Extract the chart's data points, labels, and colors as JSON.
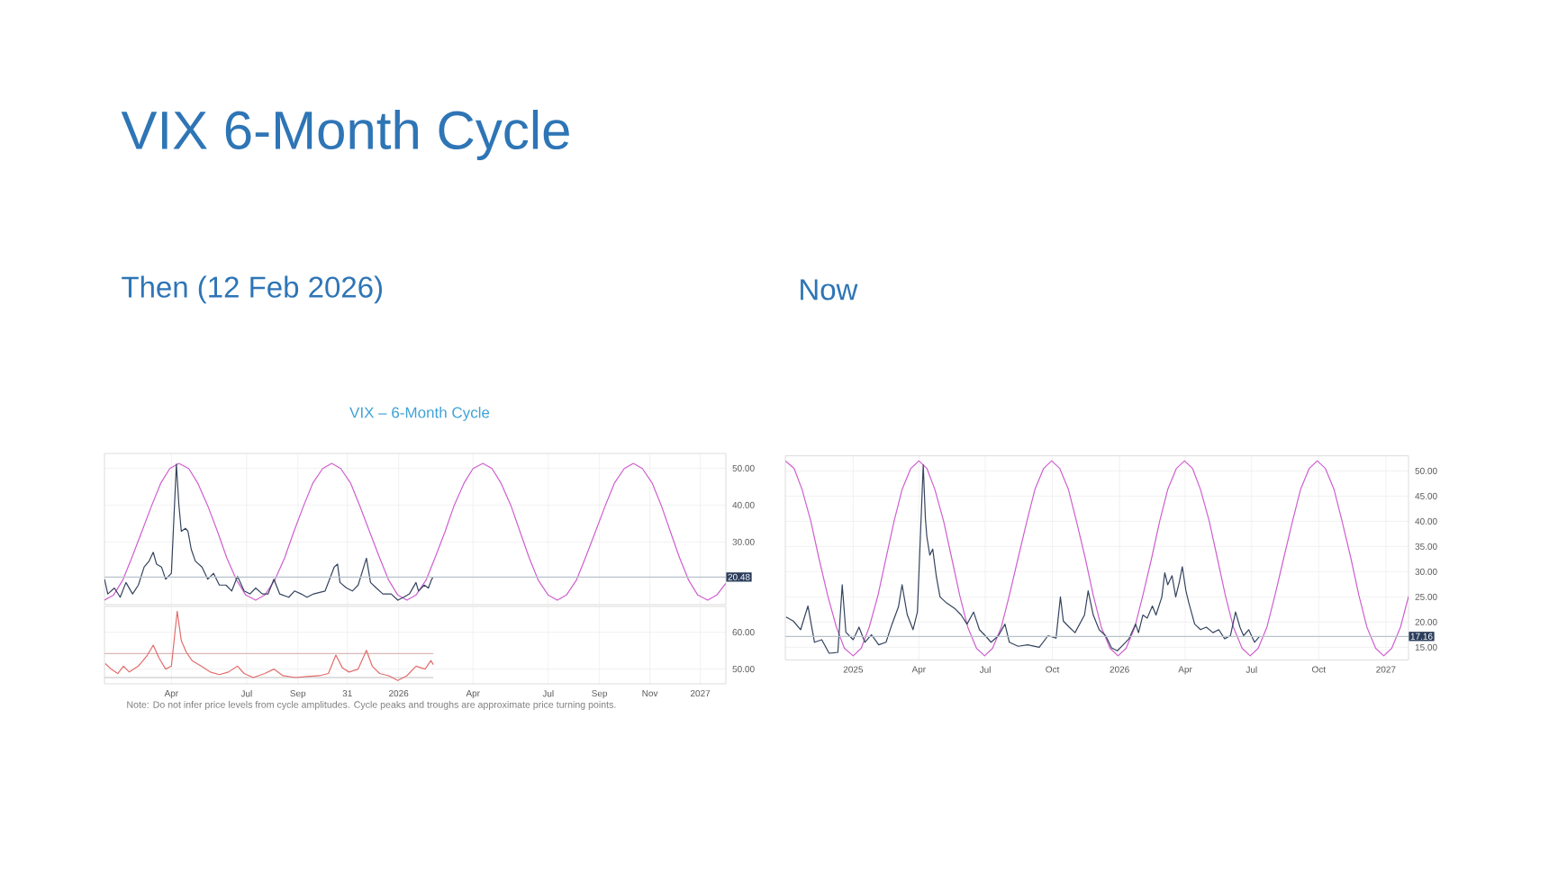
{
  "chart_data": [
    {
      "type": "line",
      "title": "VIX 6-Month Cycle",
      "subtitle": "Then (12 Feb 2026)",
      "annotations": [
        "VIX – 6-Month Cycle"
      ],
      "xlim": [
        "2025-01-10",
        "2027-02-01"
      ],
      "xticks": [
        {
          "value": "2025-04-01",
          "label": null
        },
        {
          "value": "2025-07-01",
          "label": null
        },
        {
          "value": "2025-09-01",
          "label": null
        },
        {
          "value": "2025-10-31",
          "label": null
        },
        {
          "value": "2026-01-01",
          "label": null
        },
        {
          "value": "2026-04-01",
          "label": null
        },
        {
          "value": "2026-07-01",
          "label": null
        },
        {
          "value": "2026-09-01",
          "label": null
        },
        {
          "value": "2026-11-01",
          "label": null
        },
        {
          "value": "2027-01-01",
          "label": null
        }
      ],
      "ylim": [
        13,
        54
      ],
      "yticks": [
        {
          "value": 30,
          "label": "30.00"
        },
        {
          "value": 40,
          "label": "40.00"
        },
        {
          "value": 50,
          "label": "50.00"
        }
      ],
      "grid": true,
      "tick_labels": "y",
      "ref_lines": [
        {
          "axis": "y",
          "value": 20.48,
          "label": "20.48",
          "color": "#b8c2cc"
        }
      ],
      "series": [
        {
          "color": "#cf5fcf",
          "x": [
            "2025-01-10",
            "2025-01-21",
            "2025-02-01",
            "2025-02-12",
            "2025-02-24",
            "2025-03-08",
            "2025-03-19",
            "2025-03-30",
            "2025-04-10",
            "2025-04-22",
            "2025-05-03",
            "2025-05-15",
            "2025-05-27",
            "2025-06-07",
            "2025-06-19",
            "2025-06-30",
            "2025-07-12",
            "2025-07-23",
            "2025-08-04",
            "2025-08-16",
            "2025-08-27",
            "2025-09-08",
            "2025-09-19",
            "2025-10-01",
            "2025-10-12",
            "2025-10-23",
            "2025-11-04",
            "2025-11-15",
            "2025-11-27",
            "2025-12-09",
            "2025-12-20",
            "2025-12-31",
            "2026-01-11",
            "2026-01-22",
            "2026-02-03",
            "2026-02-14",
            "2026-02-26",
            "2026-03-09",
            "2026-03-21",
            "2026-04-01",
            "2026-04-13",
            "2026-04-24",
            "2026-05-05",
            "2026-05-17",
            "2026-05-28",
            "2026-06-08",
            "2026-06-19",
            "2026-07-01",
            "2026-07-12",
            "2026-07-23",
            "2026-08-04",
            "2026-08-15",
            "2026-08-27",
            "2026-09-08",
            "2026-09-19",
            "2026-10-01",
            "2026-10-12",
            "2026-10-23",
            "2026-11-04",
            "2026-11-15",
            "2026-11-26",
            "2026-12-07",
            "2026-12-18",
            "2026-12-29",
            "2027-01-10",
            "2027-01-21",
            "2027-02-01"
          ],
          "values": [
            14.2,
            15.6,
            19.6,
            25.7,
            32.7,
            39.8,
            45.9,
            49.9,
            51.3,
            49.9,
            45.9,
            39.8,
            32.7,
            25.7,
            19.6,
            15.6,
            14.2,
            15.6,
            19.6,
            25.7,
            32.7,
            39.8,
            45.9,
            49.9,
            51.3,
            49.9,
            45.9,
            39.8,
            32.7,
            25.7,
            19.6,
            15.6,
            14.2,
            15.6,
            19.6,
            25.7,
            32.7,
            39.8,
            45.9,
            49.9,
            51.3,
            49.9,
            45.9,
            39.8,
            32.7,
            25.7,
            19.6,
            15.6,
            14.2,
            15.6,
            19.6,
            25.7,
            32.7,
            39.8,
            45.9,
            49.9,
            51.3,
            49.9,
            45.9,
            39.8,
            32.7,
            25.7,
            19.6,
            15.6,
            14.2,
            15.6,
            18.8
          ]
        },
        {
          "color": "#34445e",
          "x": [
            "2025-01-10",
            "2025-01-14",
            "2025-01-22",
            "2025-01-29",
            "2025-02-05",
            "2025-02-13",
            "2025-02-20",
            "2025-02-27",
            "2025-03-05",
            "2025-03-10",
            "2025-03-14",
            "2025-03-20",
            "2025-03-25",
            "2025-04-01",
            "2025-04-07",
            "2025-04-10",
            "2025-04-13",
            "2025-04-18",
            "2025-04-21",
            "2025-04-25",
            "2025-04-30",
            "2025-05-08",
            "2025-05-15",
            "2025-05-22",
            "2025-05-29",
            "2025-06-06",
            "2025-06-13",
            "2025-06-20",
            "2025-06-28",
            "2025-07-05",
            "2025-07-12",
            "2025-07-20",
            "2025-07-27",
            "2025-08-03",
            "2025-08-10",
            "2025-08-21",
            "2025-08-28",
            "2025-09-05",
            "2025-09-12",
            "2025-09-20",
            "2025-09-27",
            "2025-10-04",
            "2025-10-15",
            "2025-10-19",
            "2025-10-22",
            "2025-10-30",
            "2025-11-06",
            "2025-11-13",
            "2025-11-23",
            "2025-11-28",
            "2025-12-05",
            "2025-12-13",
            "2025-12-23",
            "2025-12-31",
            "2026-01-07",
            "2026-01-14",
            "2026-01-22",
            "2026-01-25",
            "2026-02-01",
            "2026-02-06",
            "2026-02-10",
            "2026-02-12"
          ],
          "values": [
            19.9,
            15.9,
            17.5,
            15.0,
            19.0,
            15.9,
            18.3,
            23.2,
            24.8,
            27.2,
            24.0,
            23.2,
            19.9,
            21.5,
            51.1,
            40.2,
            32.9,
            33.7,
            32.9,
            28.0,
            24.8,
            23.2,
            19.9,
            21.5,
            18.3,
            18.3,
            16.7,
            20.7,
            16.7,
            15.9,
            17.5,
            15.9,
            15.9,
            19.9,
            15.9,
            15.0,
            16.7,
            15.9,
            15.0,
            15.9,
            16.3,
            16.7,
            23.2,
            24.0,
            19.0,
            17.5,
            16.7,
            18.3,
            25.6,
            19.0,
            17.5,
            15.9,
            15.9,
            14.2,
            15.0,
            15.9,
            19.0,
            16.7,
            18.3,
            17.5,
            19.9,
            20.5
          ]
        }
      ]
    },
    {
      "type": "line",
      "annotations": [
        "Note: Do not infer price levels from cycle amplitudes. Cycle peaks and troughs are approximate price turning points."
      ],
      "xlim": [
        "2025-01-10",
        "2027-02-01"
      ],
      "xticks": [
        {
          "value": "2025-04-01",
          "label": "Apr"
        },
        {
          "value": "2025-07-01",
          "label": "Jul"
        },
        {
          "value": "2025-09-01",
          "label": "Sep"
        },
        {
          "value": "2025-10-31",
          "label": "31"
        },
        {
          "value": "2026-01-01",
          "label": "2026"
        },
        {
          "value": "2026-04-01",
          "label": "Apr"
        },
        {
          "value": "2026-07-01",
          "label": "Jul"
        },
        {
          "value": "2026-09-01",
          "label": "Sep"
        },
        {
          "value": "2026-11-01",
          "label": "Nov"
        },
        {
          "value": "2027-01-01",
          "label": "2027"
        }
      ],
      "ylim": [
        46,
        67
      ],
      "yticks": [
        {
          "value": 50,
          "label": "50.00"
        },
        {
          "value": 60,
          "label": "60.00"
        }
      ],
      "grid": true,
      "series": [
        {
          "color": "#dcb8b8",
          "x": [
            "2025-01-10",
            "2026-02-12"
          ],
          "values": [
            54.2,
            54.2
          ]
        },
        {
          "color": "#bfbfbf",
          "x": [
            "2025-01-10",
            "2026-02-12"
          ],
          "values": [
            47.7,
            47.7
          ]
        },
        {
          "color": "#e36c6c",
          "x": [
            "2025-01-11",
            "2025-01-18",
            "2025-01-26",
            "2025-02-02",
            "2025-02-09",
            "2025-02-20",
            "2025-03-03",
            "2025-03-10",
            "2025-03-17",
            "2025-03-25",
            "2025-04-01",
            "2025-04-08",
            "2025-04-13",
            "2025-04-19",
            "2025-04-26",
            "2025-05-07",
            "2025-05-18",
            "2025-05-29",
            "2025-06-09",
            "2025-06-20",
            "2025-06-28",
            "2025-07-09",
            "2025-07-23",
            "2025-08-03",
            "2025-08-14",
            "2025-08-29",
            "2025-09-12",
            "2025-09-27",
            "2025-10-08",
            "2025-10-17",
            "2025-10-25",
            "2025-11-02",
            "2025-11-13",
            "2025-11-23",
            "2025-11-30",
            "2025-12-09",
            "2025-12-20",
            "2025-12-31",
            "2026-01-11",
            "2026-01-22",
            "2026-02-02",
            "2026-02-09",
            "2026-02-12"
          ],
          "values": [
            51.5,
            50.0,
            48.8,
            50.8,
            49.2,
            50.8,
            53.8,
            56.5,
            53.0,
            50.0,
            50.8,
            65.7,
            57.7,
            54.6,
            52.3,
            50.8,
            49.2,
            48.5,
            49.2,
            50.8,
            48.8,
            47.7,
            48.8,
            50.0,
            48.2,
            47.7,
            48.0,
            48.2,
            48.8,
            53.8,
            50.3,
            49.2,
            50.0,
            55.1,
            50.8,
            48.8,
            48.2,
            46.9,
            48.2,
            50.8,
            50.0,
            52.3,
            51.2
          ]
        }
      ]
    },
    {
      "type": "line",
      "subtitle": "Now",
      "xlim": [
        "2024-09-30",
        "2027-02-01"
      ],
      "xticks": [
        {
          "value": "2025-01-01",
          "label": "2025"
        },
        {
          "value": "2025-04-01",
          "label": "Apr"
        },
        {
          "value": "2025-07-01",
          "label": "Jul"
        },
        {
          "value": "2025-10-01",
          "label": "Oct"
        },
        {
          "value": "2026-01-01",
          "label": "2026"
        },
        {
          "value": "2026-04-01",
          "label": "Apr"
        },
        {
          "value": "2026-07-01",
          "label": "Jul"
        },
        {
          "value": "2026-10-01",
          "label": "Oct"
        },
        {
          "value": "2027-01-01",
          "label": "2027"
        }
      ],
      "ylim": [
        12.5,
        53
      ],
      "yticks": [
        {
          "value": 15,
          "label": "15.00"
        },
        {
          "value": 20,
          "label": "20.00"
        },
        {
          "value": 25,
          "label": "25.00"
        },
        {
          "value": 30,
          "label": "30.00"
        },
        {
          "value": 35,
          "label": "35.00"
        },
        {
          "value": 40,
          "label": "40.00"
        },
        {
          "value": 45,
          "label": "45.00"
        },
        {
          "value": 50,
          "label": "50.00"
        }
      ],
      "grid": true,
      "ref_lines": [
        {
          "axis": "y",
          "value": 17.16,
          "label": "17.16",
          "color": "#b8c2cc"
        }
      ],
      "series": [
        {
          "color": "#cf5fcf",
          "x": [
            "2024-09-30",
            "2024-10-12",
            "2024-10-23",
            "2024-11-04",
            "2024-11-15",
            "2024-11-27",
            "2024-12-09",
            "2024-12-20",
            "2025-01-01",
            "2025-01-12",
            "2025-01-23",
            "2025-02-04",
            "2025-02-15",
            "2025-02-26",
            "2025-03-09",
            "2025-03-21",
            "2025-04-01",
            "2025-04-12",
            "2025-04-23",
            "2025-05-05",
            "2025-05-16",
            "2025-05-27",
            "2025-06-07",
            "2025-06-19",
            "2025-06-30",
            "2025-07-11",
            "2025-07-23",
            "2025-08-03",
            "2025-08-15",
            "2025-08-27",
            "2025-09-07",
            "2025-09-19",
            "2025-09-30",
            "2025-10-11",
            "2025-10-23",
            "2025-11-03",
            "2025-11-15",
            "2025-11-26",
            "2025-12-07",
            "2025-12-19",
            "2025-12-30",
            "2026-01-10",
            "2026-01-22",
            "2026-02-02",
            "2026-02-14",
            "2026-02-25",
            "2026-03-08",
            "2026-03-20",
            "2026-03-31",
            "2026-04-11",
            "2026-04-22",
            "2026-05-04",
            "2026-05-15",
            "2026-05-26",
            "2026-06-06",
            "2026-06-18",
            "2026-06-29",
            "2026-07-10",
            "2026-07-22",
            "2026-08-02",
            "2026-08-14",
            "2026-08-26",
            "2026-09-06",
            "2026-09-18",
            "2026-09-29",
            "2026-10-10",
            "2026-10-22",
            "2026-11-02",
            "2026-11-14",
            "2026-11-25",
            "2026-12-06",
            "2026-12-18",
            "2026-12-29",
            "2027-01-09",
            "2027-01-21",
            "2027-02-01"
          ],
          "values": [
            52.0,
            50.5,
            46.3,
            40.0,
            32.7,
            25.3,
            19.0,
            14.8,
            13.3,
            14.8,
            19.0,
            25.3,
            32.7,
            40.0,
            46.3,
            50.5,
            52.0,
            50.5,
            46.3,
            40.0,
            32.7,
            25.3,
            19.0,
            14.8,
            13.3,
            14.8,
            19.0,
            25.3,
            32.7,
            40.0,
            46.3,
            50.5,
            52.0,
            50.5,
            46.3,
            40.0,
            32.7,
            25.3,
            19.0,
            14.8,
            13.3,
            14.8,
            19.0,
            25.3,
            32.7,
            40.0,
            46.3,
            50.5,
            52.0,
            50.5,
            46.3,
            40.0,
            32.7,
            25.3,
            19.0,
            14.8,
            13.3,
            14.8,
            19.0,
            25.3,
            32.7,
            40.0,
            46.3,
            50.5,
            52.0,
            50.5,
            46.3,
            40.0,
            32.7,
            25.3,
            19.0,
            14.8,
            13.3,
            14.8,
            19.0,
            25.1
          ]
        },
        {
          "color": "#34445e",
          "x": [
            "2024-10-01",
            "2024-10-11",
            "2024-10-21",
            "2024-10-31",
            "2024-11-09",
            "2024-11-19",
            "2024-11-29",
            "2024-12-11",
            "2024-12-17",
            "2024-12-22",
            "2025-01-01",
            "2025-01-09",
            "2025-01-17",
            "2025-01-26",
            "2025-02-05",
            "2025-02-15",
            "2025-02-23",
            "2025-03-04",
            "2025-03-09",
            "2025-03-16",
            "2025-03-24",
            "2025-03-30",
            "2025-04-07",
            "2025-04-10",
            "2025-04-12",
            "2025-04-16",
            "2025-04-20",
            "2025-04-25",
            "2025-04-30",
            "2025-05-09",
            "2025-05-21",
            "2025-05-29",
            "2025-06-06",
            "2025-06-15",
            "2025-06-23",
            "2025-07-01",
            "2025-07-09",
            "2025-07-19",
            "2025-07-28",
            "2025-08-03",
            "2025-08-15",
            "2025-08-28",
            "2025-09-13",
            "2025-09-25",
            "2025-10-06",
            "2025-10-12",
            "2025-10-16",
            "2025-10-24",
            "2025-11-01",
            "2025-11-14",
            "2025-11-19",
            "2025-11-26",
            "2025-12-04",
            "2025-12-13",
            "2025-12-21",
            "2025-12-29",
            "2026-01-06",
            "2026-01-14",
            "2026-01-23",
            "2026-01-27",
            "2026-02-02",
            "2026-02-08",
            "2026-02-15",
            "2026-02-20",
            "2026-02-28",
            "2026-03-04",
            "2026-03-08",
            "2026-03-14",
            "2026-03-19",
            "2026-03-24",
            "2026-03-28",
            "2026-04-02",
            "2026-04-06",
            "2026-04-14",
            "2026-04-22",
            "2026-04-30",
            "2026-05-09",
            "2026-05-17",
            "2026-05-25",
            "2026-06-02",
            "2026-06-09",
            "2026-06-15",
            "2026-06-20",
            "2026-06-27",
            "2026-07-05",
            "2026-07-12"
          ],
          "values": [
            21.0,
            20.2,
            18.5,
            23.2,
            16.0,
            16.5,
            13.8,
            14.0,
            27.4,
            18.0,
            16.5,
            19.0,
            16.0,
            17.5,
            15.5,
            16.0,
            19.5,
            23.0,
            27.4,
            21.5,
            18.5,
            22.0,
            51.2,
            40.5,
            36.9,
            33.3,
            34.5,
            29.0,
            25.0,
            23.8,
            22.6,
            21.4,
            19.6,
            22.0,
            18.5,
            17.3,
            16.0,
            17.3,
            19.6,
            16.0,
            15.2,
            15.5,
            15.0,
            17.3,
            16.8,
            25.0,
            20.2,
            19.0,
            17.9,
            21.4,
            26.2,
            21.4,
            18.5,
            17.3,
            14.9,
            14.3,
            15.5,
            16.7,
            19.6,
            17.9,
            21.4,
            20.8,
            23.2,
            21.4,
            25.0,
            29.8,
            27.4,
            29.2,
            25.0,
            28.0,
            31.0,
            26.2,
            23.8,
            19.6,
            18.5,
            19.0,
            17.9,
            18.5,
            16.7,
            17.3,
            22.0,
            19.0,
            17.3,
            18.5,
            16.0,
            17.2
          ]
        }
      ]
    }
  ]
}
